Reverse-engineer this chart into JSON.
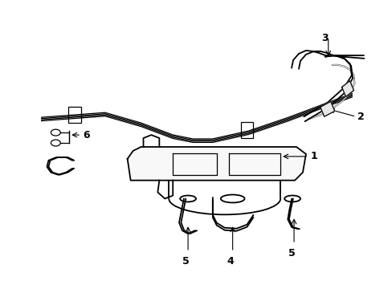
{
  "background_color": "#ffffff",
  "line_color": "#000000",
  "lw": 1.3,
  "tlw": 0.9,
  "figsize": [
    4.89,
    3.6
  ],
  "dpi": 100,
  "label_fs": 9
}
